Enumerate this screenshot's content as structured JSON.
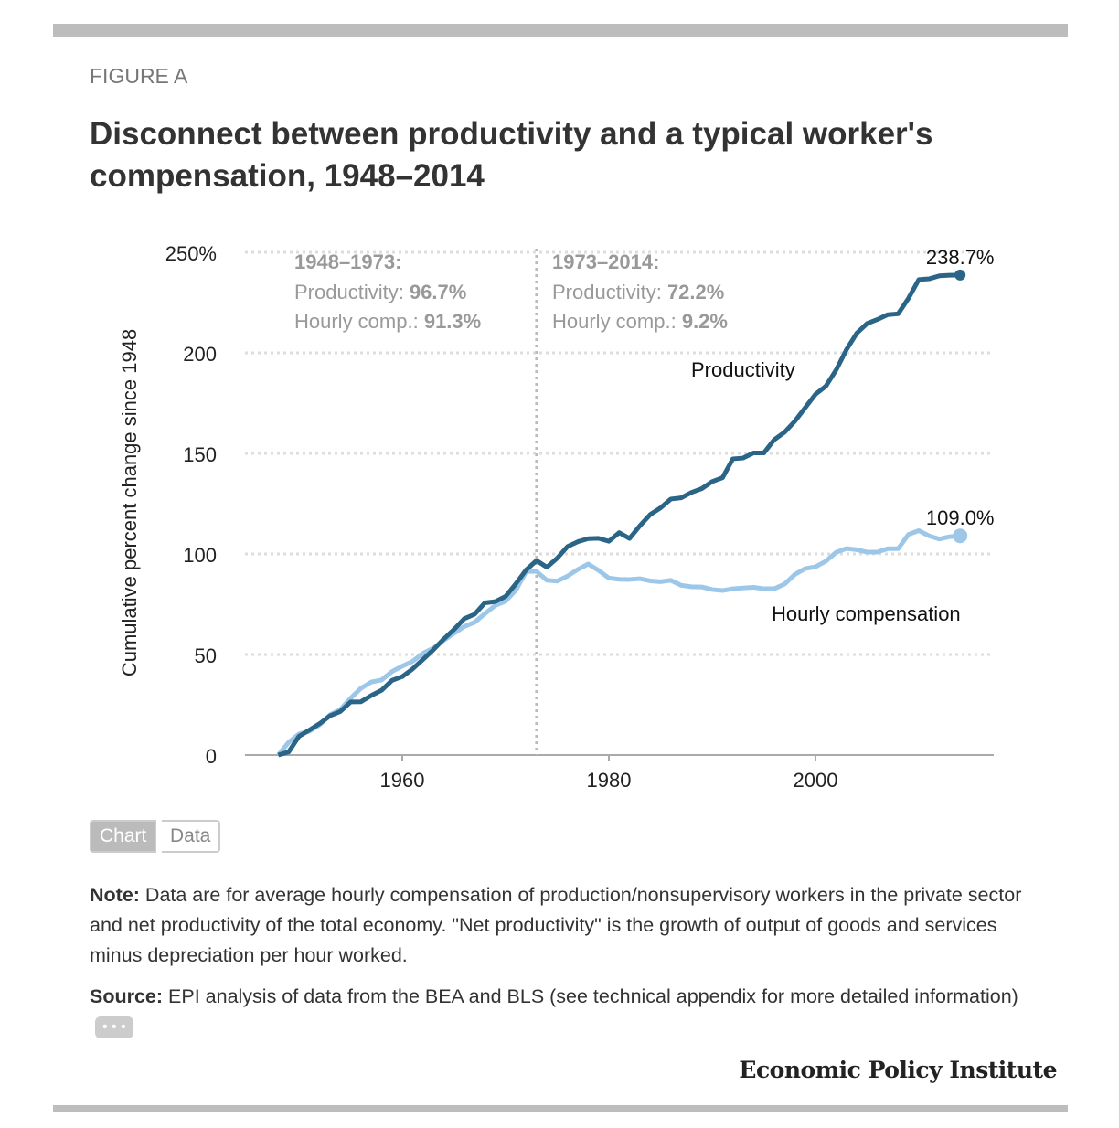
{
  "figure_label": "FIGURE A",
  "title": "Disconnect between productivity and a typical worker's compensation, 1948–2014",
  "toggle": {
    "chart": "Chart",
    "data": "Data"
  },
  "note": {
    "label": "Note:",
    "text": " Data are for average hourly compensation of production/nonsupervisory workers in the private sector and net productivity of the total economy. \"Net productivity\" is the growth of output of goods and services minus depreciation per hour worked."
  },
  "source": {
    "label": "Source:",
    "text": " EPI analysis of data from the BEA and BLS (see technical appendix for more detailed information)",
    "more": "• • •"
  },
  "logo": "Economic Policy Institute",
  "colors": {
    "productivity": "#2a6587",
    "compensation": "#9dc7e8",
    "grid": "#dddddd"
  },
  "chart_data": {
    "type": "line",
    "ylabel": "Cumulative percent change since 1948",
    "ylim": [
      0,
      250
    ],
    "xlim": [
      1945,
      2017
    ],
    "yticks": [
      {
        "v": 0,
        "label": "0"
      },
      {
        "v": 50,
        "label": "50"
      },
      {
        "v": 100,
        "label": "100"
      },
      {
        "v": 150,
        "label": "150"
      },
      {
        "v": 200,
        "label": "200"
      },
      {
        "v": 250,
        "label": "250%"
      }
    ],
    "xticks": [
      {
        "v": 1960,
        "label": "1960"
      },
      {
        "v": 1980,
        "label": "1980"
      },
      {
        "v": 2000,
        "label": "2000"
      }
    ],
    "divider_year": 1973,
    "annotations": [
      {
        "head": "1948–1973:",
        "l1": "Productivity: ",
        "v1": "96.7%",
        "l2": "Hourly comp.: ",
        "v2": "91.3%"
      },
      {
        "head": "1973–2014:",
        "l1": "Productivity: ",
        "v1": "72.2%",
        "l2": "Hourly comp.: ",
        "v2": "9.2%"
      }
    ],
    "x_start": 1948,
    "series": [
      {
        "name": "Productivity",
        "end_label": "238.7%",
        "values": [
          0,
          1.5,
          9.3,
          12.4,
          15.6,
          19.5,
          21.6,
          26.4,
          26.5,
          29.6,
          32.2,
          37.1,
          39.0,
          42.8,
          47.5,
          52.3,
          57.6,
          62.4,
          67.8,
          70.0,
          75.7,
          76.3,
          78.9,
          85.2,
          92.1,
          96.7,
          93.4,
          97.9,
          103.7,
          106.1,
          107.6,
          107.8,
          106.3,
          110.6,
          107.7,
          114.0,
          119.6,
          122.9,
          127.3,
          127.9,
          130.6,
          132.5,
          136.0,
          137.9,
          147.3,
          147.7,
          150.2,
          150.2,
          156.8,
          160.5,
          166.0,
          172.7,
          179.4,
          183.4,
          191.5,
          201.6,
          209.8,
          214.6,
          216.6,
          219.0,
          219.4,
          227.1,
          236.4,
          236.8,
          238.3,
          238.6,
          238.7
        ]
      },
      {
        "name": "Hourly compensation",
        "end_label": "109.0%",
        "values": [
          0,
          6.3,
          10.5,
          11.8,
          15.0,
          20.0,
          22.6,
          28.2,
          33.2,
          36.3,
          37.3,
          41.5,
          44.2,
          46.6,
          50.6,
          53.1,
          57.0,
          60.5,
          63.9,
          66.0,
          70.3,
          74.4,
          76.5,
          82.0,
          91.3,
          91.3,
          86.9,
          86.5,
          89.0,
          92.3,
          95.0,
          91.8,
          88.0,
          87.4,
          87.3,
          87.7,
          86.6,
          86.2,
          86.9,
          84.4,
          83.7,
          83.6,
          82.3,
          81.8,
          82.7,
          83.1,
          83.4,
          82.7,
          82.7,
          85.0,
          89.8,
          92.7,
          93.6,
          96.4,
          100.8,
          102.7,
          102.1,
          100.9,
          100.9,
          102.6,
          102.6,
          109.7,
          111.6,
          109.0,
          107.4,
          108.6,
          109.0
        ]
      }
    ]
  }
}
